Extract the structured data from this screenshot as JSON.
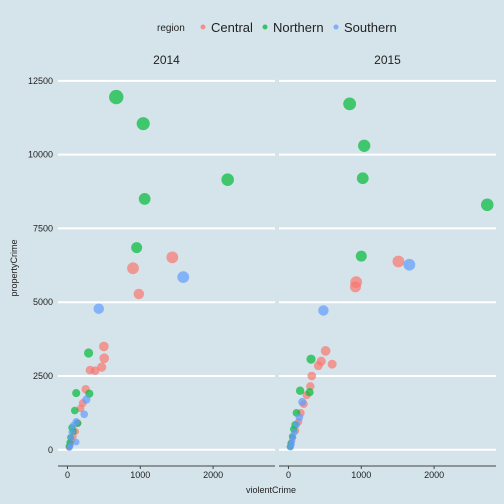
{
  "legend": {
    "title": "region",
    "items": [
      {
        "label": "Central",
        "color": "#F8766D"
      },
      {
        "label": "Northern",
        "color": "#00BA38"
      },
      {
        "label": "Southern",
        "color": "#619CFF"
      }
    ]
  },
  "colors": {
    "background": "#d5e4eb",
    "gridline": "#ffffff",
    "text": "#222222"
  },
  "chart_data": {
    "type": "scatter",
    "xlabel": "violentCrime",
    "ylabel": "propertyCrime",
    "xlim": [
      -130,
      2850
    ],
    "ylim": [
      -550,
      12800
    ],
    "xticks": [
      0,
      1000,
      2000
    ],
    "yticks": [
      0,
      2500,
      5000,
      7500,
      10000,
      12500
    ],
    "grid": "horizontal",
    "legend_position": "top",
    "facets": [
      {
        "name": "2014",
        "series": [
          {
            "name": "Central",
            "points": [
              [
                1440,
                6520,
                3
              ],
              [
                900,
                6150,
                3
              ],
              [
                980,
                5280,
                2.5
              ],
              [
                500,
                3500,
                2.2
              ],
              [
                505,
                3100,
                2.2
              ],
              [
                470,
                2800,
                2
              ],
              [
                380,
                2680,
                1.8
              ],
              [
                310,
                2700,
                1.8
              ],
              [
                250,
                2050,
                1.7
              ],
              [
                210,
                1580,
                1.5
              ],
              [
                180,
                1400,
                1.4
              ],
              [
                140,
                900,
                1.3
              ],
              [
                110,
                620,
                1.2
              ],
              [
                80,
                450,
                1.1
              ],
              [
                60,
                300,
                1
              ],
              [
                45,
                200,
                1
              ],
              [
                30,
                120,
                1
              ],
              [
                20,
                80,
                1
              ]
            ]
          },
          {
            "name": "Northern",
            "points": [
              [
                670,
                11950,
                4
              ],
              [
                1040,
                11050,
                3.5
              ],
              [
                2200,
                9150,
                3.3
              ],
              [
                1060,
                8500,
                3
              ],
              [
                950,
                6850,
                2.7
              ],
              [
                290,
                3280,
                2
              ],
              [
                120,
                1920,
                1.6
              ],
              [
                300,
                1900,
                1.6
              ],
              [
                100,
                1330,
                1.4
              ],
              [
                140,
                900,
                1.3
              ],
              [
                60,
                750,
                1.2
              ],
              [
                80,
                620,
                1.1
              ],
              [
                40,
                420,
                1
              ],
              [
                30,
                250,
                1
              ],
              [
                20,
                120,
                1
              ]
            ]
          },
          {
            "name": "Southern",
            "points": [
              [
                1590,
                5850,
                3
              ],
              [
                430,
                4780,
                2.5
              ],
              [
                260,
                1700,
                1.6
              ],
              [
                230,
                1200,
                1.4
              ],
              [
                120,
                950,
                1.3
              ],
              [
                80,
                820,
                1.2
              ],
              [
                60,
                600,
                1.1
              ],
              [
                50,
                400,
                1
              ],
              [
                120,
                260,
                1
              ],
              [
                40,
                150,
                1
              ],
              [
                30,
                80,
                1
              ]
            ]
          }
        ]
      },
      {
        "name": "2015",
        "series": [
          {
            "name": "Central",
            "points": [
              [
                1510,
                6380,
                3
              ],
              [
                930,
                5680,
                3
              ],
              [
                920,
                5520,
                2.7
              ],
              [
                510,
                3350,
                2.2
              ],
              [
                450,
                3000,
                2
              ],
              [
                600,
                2900,
                1.9
              ],
              [
                410,
                2850,
                1.9
              ],
              [
                320,
                2500,
                1.8
              ],
              [
                300,
                2150,
                1.7
              ],
              [
                250,
                1850,
                1.6
              ],
              [
                210,
                1550,
                1.5
              ],
              [
                170,
                1250,
                1.4
              ],
              [
                140,
                950,
                1.3
              ],
              [
                100,
                650,
                1.2
              ],
              [
                60,
                420,
                1.1
              ],
              [
                40,
                250,
                1
              ],
              [
                30,
                120,
                1
              ]
            ]
          },
          {
            "name": "Northern",
            "points": [
              [
                2730,
                8300,
                3.3
              ],
              [
                840,
                11720,
                3.4
              ],
              [
                1040,
                10300,
                3.2
              ],
              [
                1020,
                9200,
                3
              ],
              [
                1000,
                6560,
                2.7
              ],
              [
                310,
                3070,
                2
              ],
              [
                160,
                2000,
                1.7
              ],
              [
                290,
                1950,
                1.6
              ],
              [
                110,
                1250,
                1.4
              ],
              [
                90,
                850,
                1.3
              ],
              [
                70,
                700,
                1.2
              ],
              [
                50,
                450,
                1
              ],
              [
                30,
                220,
                1
              ],
              [
                20,
                100,
                1
              ]
            ]
          },
          {
            "name": "Southern",
            "points": [
              [
                1660,
                6270,
                3
              ],
              [
                480,
                4720,
                2.5
              ],
              [
                190,
                1620,
                1.6
              ],
              [
                150,
                1100,
                1.4
              ],
              [
                110,
                850,
                1.3
              ],
              [
                80,
                600,
                1.2
              ],
              [
                60,
                430,
                1.1
              ],
              [
                50,
                300,
                1
              ],
              [
                40,
                180,
                1
              ],
              [
                30,
                90,
                1
              ]
            ]
          }
        ]
      }
    ]
  }
}
